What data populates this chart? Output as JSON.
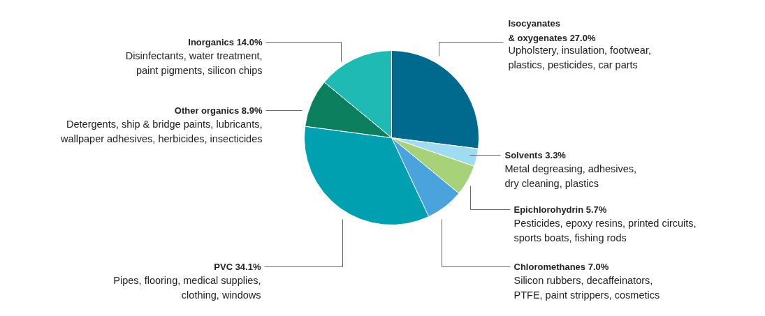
{
  "chart_data": {
    "type": "pie",
    "categories": [
      "Isocyanates\n& oxygenates 27.0%",
      "Solvents 3.3%",
      "Epichlorohydrin 5.7%",
      "Chloromethanes 7.0%",
      "PVC 34.1%",
      "Other organics 8.9%",
      "Inorganics 14.0%"
    ],
    "values": [
      27.0,
      3.3,
      5.7,
      7.0,
      34.1,
      8.9,
      14.0
    ],
    "colors": [
      "#006a8e",
      "#a0dcf0",
      "#a8d27a",
      "#4aa3dc",
      "#00a0b0",
      "#0b7f5e",
      "#20bab4"
    ],
    "annotations": [
      "Upholstery, insulation, footwear,\nplastics, pesticides, car parts",
      "Metal degreasing, adhesives,\ndry cleaning, plastics",
      "Pesticides, epoxy resins, printed circuits,\nsports boats, fishing rods",
      "Silicon rubbers, decaffeinators,\nPTFE, paint strippers, cosmetics",
      "Pipes, flooring, medical supplies,\nclothing, windows",
      "Detergents, ship & bridge paints, lubricants,\nwallpaper adhesives, herbicides, insecticides",
      "Disinfectants, water treatment,\npaint pigments, silicon chips"
    ]
  }
}
